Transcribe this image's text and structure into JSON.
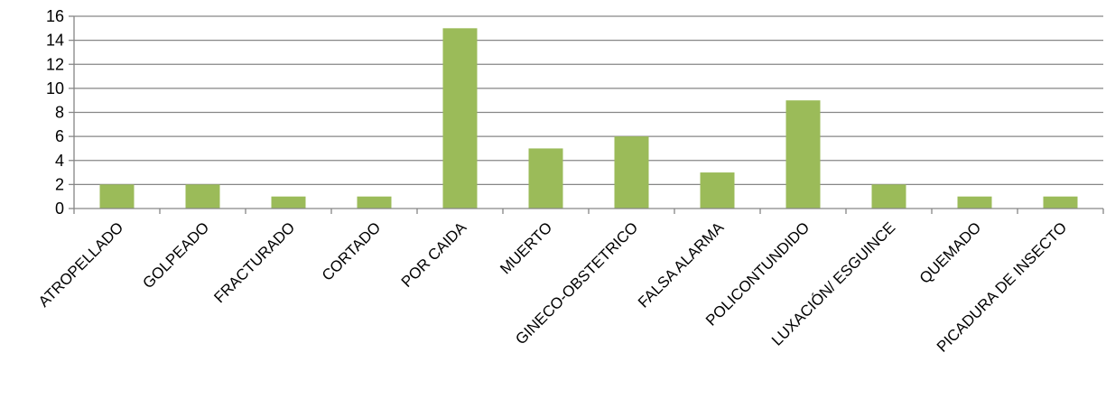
{
  "chart_data": {
    "type": "bar",
    "categories": [
      "ATROPELLADO",
      "GOLPEADO",
      "FRACTURADO",
      "CORTADO",
      "POR CAIDA",
      "MUERTO",
      "GINECO-OBSTETRICO",
      "FALSA ALARMA",
      "POLICONTUNDIDO",
      "LUXACIÓN/ ESGUINCE",
      "QUEMADO",
      "PICADURA DE INSECTO"
    ],
    "values": [
      2,
      2,
      1,
      1,
      15,
      5,
      6,
      3,
      9,
      2,
      1,
      1
    ],
    "title": "",
    "xlabel": "",
    "ylabel": "",
    "ylim": [
      0,
      16
    ],
    "yticks": [
      0,
      2,
      4,
      6,
      8,
      10,
      12,
      14,
      16
    ],
    "grid": true,
    "legend": "none",
    "bar_color": "#9BBB59",
    "grid_color": "#868686",
    "axis_color": "#868686"
  }
}
